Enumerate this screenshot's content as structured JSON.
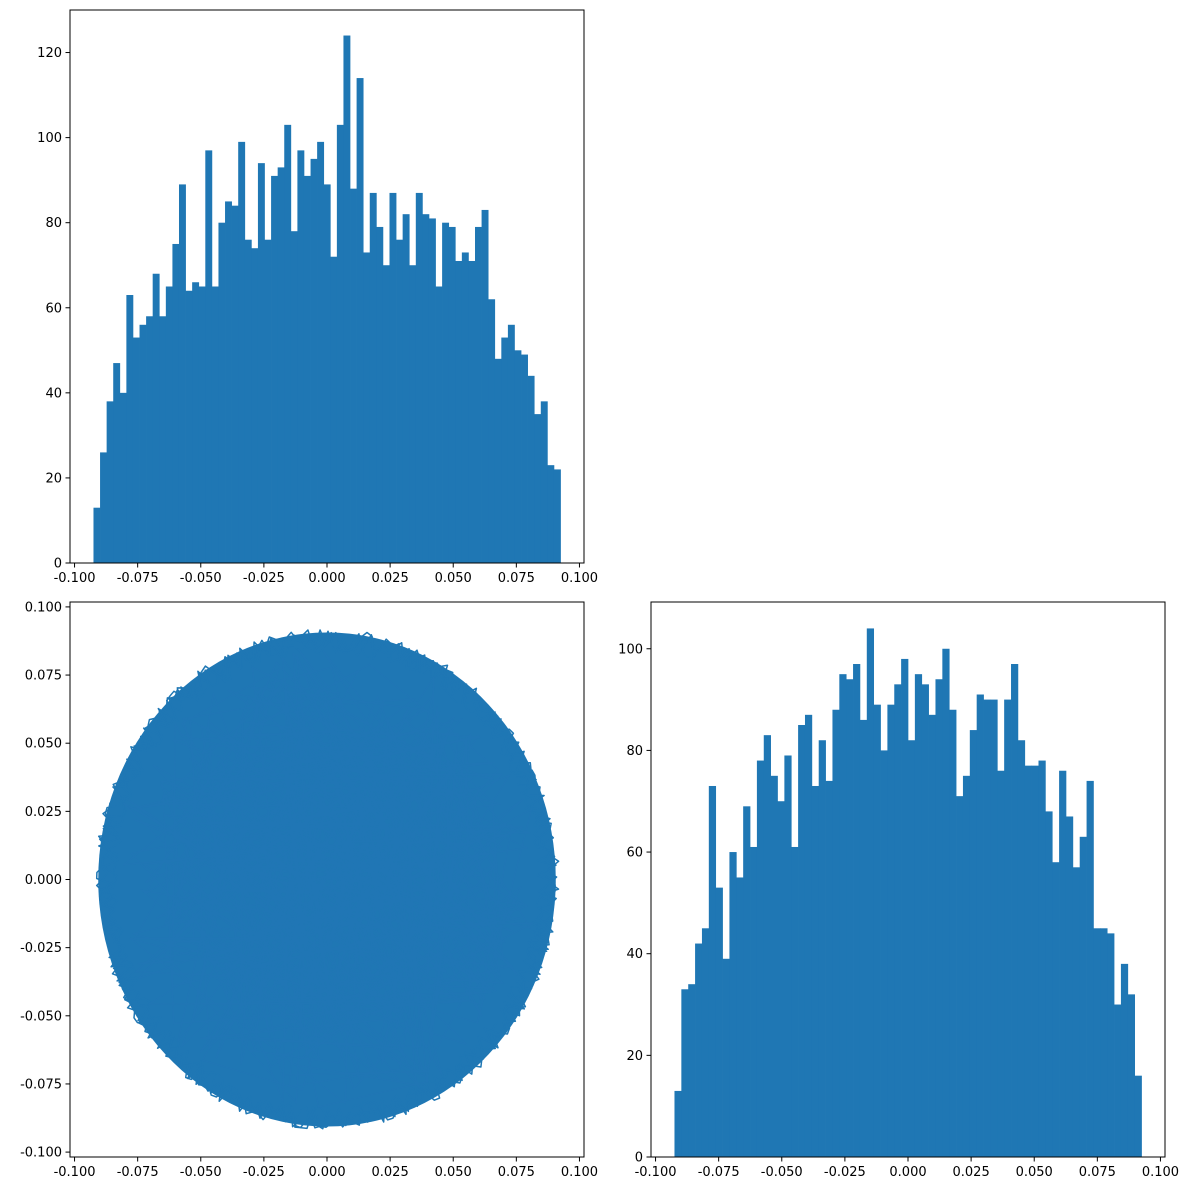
{
  "chart_data": [
    {
      "type": "bar",
      "subtype": "histogram",
      "position": "top-left",
      "color": "#1f77b4",
      "bin_range": [
        -0.0925,
        0.0925
      ],
      "values": [
        13,
        26,
        38,
        47,
        40,
        63,
        53,
        56,
        58,
        68,
        58,
        65,
        75,
        89,
        64,
        66,
        65,
        97,
        65,
        80,
        85,
        84,
        99,
        76,
        74,
        94,
        76,
        91,
        93,
        103,
        78,
        97,
        91,
        95,
        99,
        89,
        72,
        103,
        124,
        88,
        114,
        73,
        87,
        79,
        70,
        87,
        76,
        82,
        70,
        87,
        82,
        81,
        65,
        80,
        79,
        71,
        73,
        71,
        79,
        83,
        62,
        48,
        53,
        56,
        50,
        49,
        44,
        35,
        38,
        23,
        22
      ],
      "xlim": [
        -0.1018,
        0.1018
      ],
      "ylim": [
        0,
        130
      ],
      "xticks": [
        -0.1,
        -0.075,
        -0.05,
        -0.025,
        0.0,
        0.025,
        0.05,
        0.075,
        0.1
      ],
      "xtick_labels": [
        "-0.100",
        "-0.075",
        "-0.050",
        "-0.025",
        "0.000",
        "0.025",
        "0.050",
        "0.075",
        "0.100"
      ],
      "yticks": [
        0,
        20,
        40,
        60,
        80,
        100,
        120
      ],
      "ytick_labels": [
        "0",
        "20",
        "40",
        "60",
        "80",
        "100",
        "120"
      ],
      "title": "",
      "xlabel": "",
      "ylabel": ""
    },
    {
      "type": "line",
      "position": "bottom-left",
      "color": "#1f77b4",
      "description_shape": "random walk path filling a disk of radius 0.092",
      "disk_radius": 0.092,
      "xlim": [
        -0.1018,
        0.1018
      ],
      "ylim": [
        -0.1018,
        0.1018
      ],
      "xticks": [
        -0.1,
        -0.075,
        -0.05,
        -0.025,
        0.0,
        0.025,
        0.05,
        0.075,
        0.1
      ],
      "xtick_labels": [
        "-0.100",
        "-0.075",
        "-0.050",
        "-0.025",
        "0.000",
        "0.025",
        "0.050",
        "0.075",
        "0.100"
      ],
      "yticks": [
        -0.1,
        -0.075,
        -0.05,
        -0.025,
        0.0,
        0.025,
        0.05,
        0.075,
        0.1
      ],
      "ytick_labels": [
        "-0.100",
        "-0.075",
        "-0.050",
        "-0.025",
        "0.000",
        "0.025",
        "0.050",
        "0.075",
        "0.100"
      ],
      "title": "",
      "xlabel": "",
      "ylabel": ""
    },
    {
      "type": "bar",
      "subtype": "histogram",
      "position": "bottom-right",
      "color": "#1f77b4",
      "bin_range": [
        -0.0925,
        0.0925
      ],
      "values": [
        13,
        33,
        34,
        42,
        45,
        73,
        53,
        39,
        60,
        55,
        69,
        61,
        78,
        83,
        75,
        70,
        79,
        61,
        85,
        87,
        73,
        82,
        74,
        88,
        95,
        94,
        97,
        86,
        104,
        89,
        80,
        89,
        93,
        98,
        82,
        95,
        93,
        87,
        94,
        100,
        88,
        71,
        75,
        84,
        91,
        90,
        90,
        76,
        90,
        97,
        82,
        77,
        77,
        78,
        68,
        58,
        76,
        67,
        57,
        63,
        74,
        45,
        45,
        44,
        30,
        38,
        32,
        16
      ],
      "xlim": [
        -0.1018,
        0.1018
      ],
      "ylim": [
        0,
        109.2
      ],
      "xticks": [
        -0.1,
        -0.075,
        -0.05,
        -0.025,
        0.0,
        0.025,
        0.05,
        0.075,
        0.1
      ],
      "xtick_labels": [
        "-0.100",
        "-0.075",
        "-0.050",
        "-0.025",
        "0.000",
        "0.025",
        "0.050",
        "0.075",
        "0.100"
      ],
      "yticks": [
        0,
        20,
        40,
        60,
        80,
        100
      ],
      "ytick_labels": [
        "0",
        "20",
        "40",
        "60",
        "80",
        "100"
      ],
      "title": "",
      "xlabel": "",
      "ylabel": ""
    }
  ]
}
